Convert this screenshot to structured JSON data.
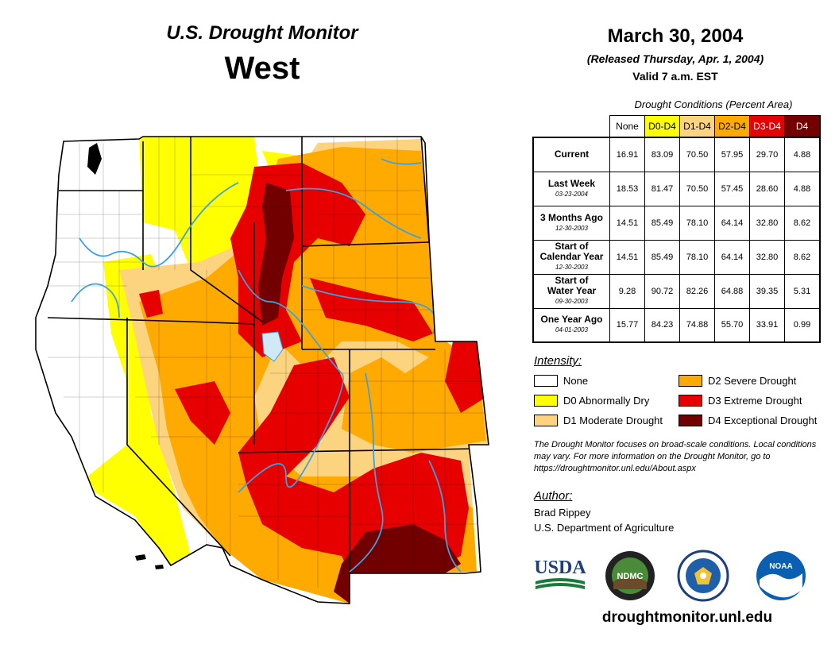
{
  "header": {
    "title": "U.S. Drought Monitor",
    "region": "West",
    "date": "March 30, 2004",
    "released": "(Released Thursday, Apr. 1, 2004)",
    "valid": "Valid 7 a.m. EST"
  },
  "table": {
    "caption": "Drought Conditions (Percent Area)",
    "columns": [
      {
        "label": "None",
        "color": "#ffffff",
        "text_color": "#000000"
      },
      {
        "label": "D0-D4",
        "color": "#ffff00",
        "text_color": "#000000"
      },
      {
        "label": "D1-D4",
        "color": "#fcd37f",
        "text_color": "#000000"
      },
      {
        "label": "D2-D4",
        "color": "#ffaa00",
        "text_color": "#000000"
      },
      {
        "label": "D3-D4",
        "color": "#e60000",
        "text_color": "#ffffff"
      },
      {
        "label": "D4",
        "color": "#730000",
        "text_color": "#ffffff"
      }
    ],
    "rows": [
      {
        "label": [
          "Current"
        ],
        "date": "",
        "values": [
          "16.91",
          "83.09",
          "70.50",
          "57.95",
          "29.70",
          "4.88"
        ]
      },
      {
        "label": [
          "Last Week"
        ],
        "date": "03-23-2004",
        "values": [
          "18.53",
          "81.47",
          "70.50",
          "57.45",
          "28.60",
          "4.88"
        ]
      },
      {
        "label": [
          "3 Months Ago"
        ],
        "date": "12-30-2003",
        "values": [
          "14.51",
          "85.49",
          "78.10",
          "64.14",
          "32.80",
          "8.62"
        ]
      },
      {
        "label": [
          "Start of",
          "Calendar Year"
        ],
        "date": "12-30-2003",
        "values": [
          "14.51",
          "85.49",
          "78.10",
          "64.14",
          "32.80",
          "8.62"
        ]
      },
      {
        "label": [
          "Start of",
          "Water Year"
        ],
        "date": "09-30-2003",
        "values": [
          "9.28",
          "90.72",
          "82.26",
          "64.88",
          "39.35",
          "5.31"
        ]
      },
      {
        "label": [
          "One Year Ago"
        ],
        "date": "04-01-2003",
        "values": [
          "15.77",
          "84.23",
          "74.88",
          "55.70",
          "33.91",
          "0.99"
        ]
      }
    ]
  },
  "legend": {
    "title": "Intensity:",
    "items": [
      {
        "label": "None",
        "color": "#ffffff"
      },
      {
        "label": "D0 Abnormally Dry",
        "color": "#ffff00"
      },
      {
        "label": "D1 Moderate Drought",
        "color": "#fcd37f"
      },
      {
        "label": "D2 Severe Drought",
        "color": "#ffaa00"
      },
      {
        "label": "D3 Extreme Drought",
        "color": "#e60000"
      },
      {
        "label": "D4 Exceptional Drought",
        "color": "#730000"
      }
    ]
  },
  "note": "The Drought Monitor focuses on broad-scale conditions. Local conditions may vary. For more information on the Drought Monitor, go to https://droughtmonitor.unl.edu/About.aspx",
  "author": {
    "title": "Author:",
    "name": "Brad Rippey",
    "org": "U.S. Department of Agriculture"
  },
  "logos": {
    "usda": "USDA",
    "ndmc": "NDMC",
    "doc": "department-of-commerce-seal",
    "noaa": "NOAA"
  },
  "url": "droughtmonitor.unl.edu"
}
